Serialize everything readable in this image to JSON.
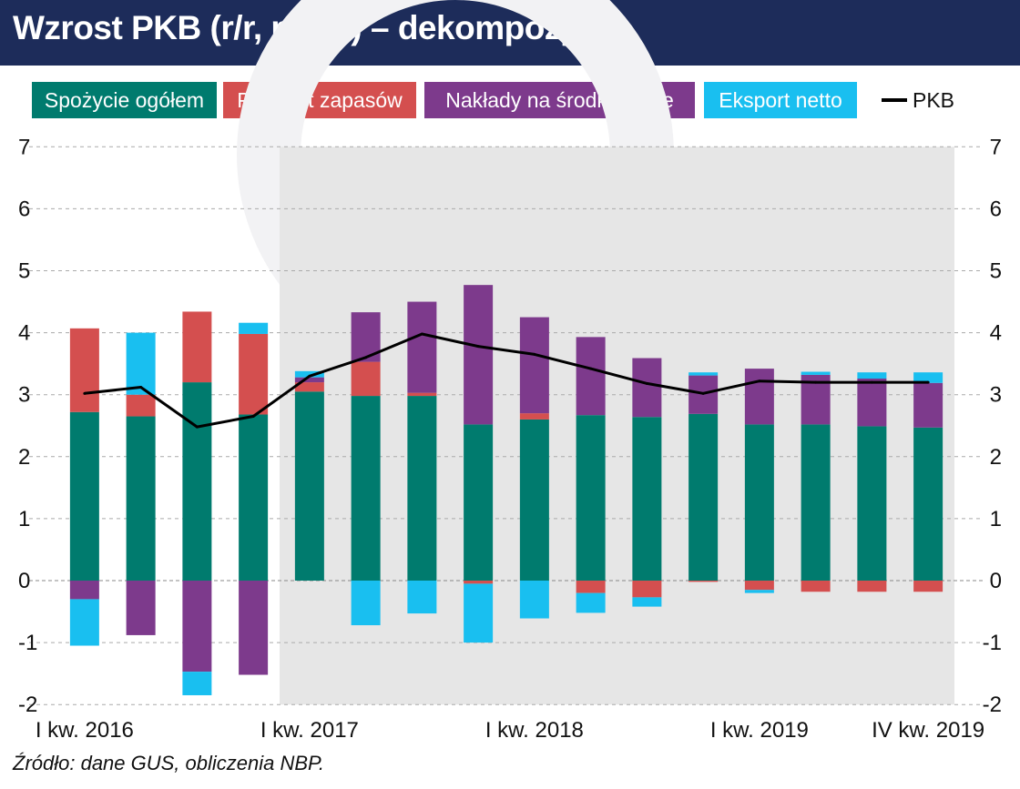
{
  "header": {
    "title": "Wzrost PKB (r/r, proc.) – dekompozycja"
  },
  "legend": {
    "consumption": "Spożycie ogółem",
    "inventories": "Przyrost zapasów",
    "investment": "Nakłady na środki trwałe",
    "net_exports": "Eksport netto",
    "gdp": "PKB"
  },
  "footer": {
    "source": "Źródło: dane GUS, obliczenia NBP."
  },
  "colors": {
    "consumption": "#007b6e",
    "inventories": "#d44f4f",
    "investment": "#7d3a8c",
    "net_exports": "#19bff0",
    "gdp": "#000000",
    "shade": "#e6e6e6",
    "title_bg": "#1d2c5a"
  },
  "chart_data": {
    "type": "bar",
    "stacked": true,
    "categories": [
      "I kw. 2016",
      "II kw. 2016",
      "III kw. 2016",
      "IV kw. 2016",
      "I kw. 2017",
      "II kw. 2017",
      "III kw. 2017",
      "IV kw. 2017",
      "I kw. 2018",
      "II kw. 2018",
      "III kw. 2018",
      "IV kw. 2018",
      "I kw. 2019",
      "II kw. 2019",
      "III kw. 2019",
      "IV kw. 2019"
    ],
    "x_tick_labels": [
      "I kw. 2016",
      "I kw. 2017",
      "I kw. 2018",
      "I kw. 2019",
      "IV kw. 2019"
    ],
    "x_tick_categories": [
      "I kw. 2016",
      "I kw. 2017",
      "I kw. 2018",
      "I kw. 2019",
      "IV kw. 2019"
    ],
    "series": [
      {
        "name": "Spożycie ogółem",
        "key": "consumption",
        "values": [
          2.72,
          2.65,
          3.2,
          2.68,
          3.05,
          2.98,
          2.98,
          2.52,
          2.6,
          2.67,
          2.64,
          2.69,
          2.52,
          2.52,
          2.49,
          2.47
        ]
      },
      {
        "name": "Przyrost zapasów",
        "key": "inventories",
        "values": [
          1.35,
          0.35,
          1.14,
          1.3,
          0.15,
          0.55,
          0.05,
          -0.05,
          0.1,
          -0.2,
          -0.27,
          -0.02,
          -0.15,
          -0.18,
          -0.18,
          -0.18
        ]
      },
      {
        "name": "Nakłady na środki trwałe",
        "key": "investment",
        "values": [
          -0.3,
          -0.88,
          -1.47,
          -1.52,
          0.08,
          0.8,
          1.47,
          2.25,
          1.55,
          1.26,
          0.95,
          0.62,
          0.9,
          0.8,
          0.77,
          0.72
        ]
      },
      {
        "name": "Eksport netto",
        "key": "net_exports",
        "values": [
          -0.75,
          1.0,
          -0.38,
          0.18,
          0.1,
          -0.72,
          -0.53,
          -0.95,
          -0.61,
          -0.32,
          -0.15,
          0.05,
          -0.05,
          0.05,
          0.1,
          0.17
        ]
      }
    ],
    "line": {
      "name": "PKB",
      "key": "gdp",
      "values": [
        3.02,
        3.12,
        2.48,
        2.65,
        3.3,
        3.6,
        3.98,
        3.78,
        3.65,
        3.42,
        3.18,
        3.02,
        3.22,
        3.2,
        3.2,
        3.2
      ]
    },
    "ylim": [
      -2,
      7
    ],
    "yticks": [
      -2,
      -1,
      0,
      1,
      2,
      3,
      4,
      5,
      6,
      7
    ],
    "ytick_labels": [
      "-2",
      "-1",
      "0",
      "1",
      "2",
      "3",
      "4",
      "5",
      "6",
      "7"
    ],
    "shaded_from": "I kw. 2017",
    "grid": "dashed",
    "legend_position": "top"
  }
}
